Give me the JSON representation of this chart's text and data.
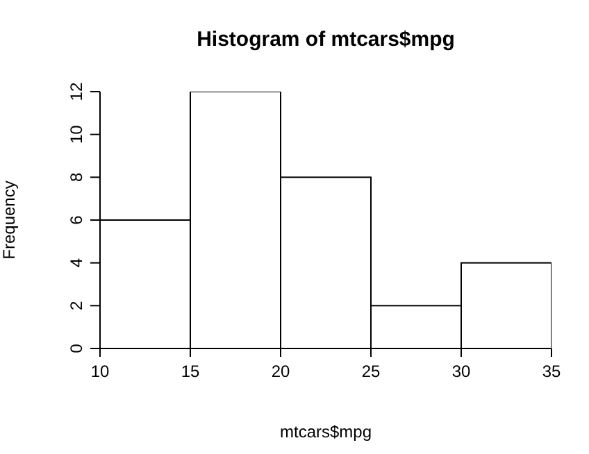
{
  "chart_data": {
    "type": "histogram",
    "title": "Histogram of mtcars$mpg",
    "xlabel": "mtcars$mpg",
    "ylabel": "Frequency",
    "bins": [
      10,
      15,
      20,
      25,
      30,
      35
    ],
    "values": [
      6,
      12,
      8,
      2,
      4
    ],
    "color": "#ffffff",
    "xlim": [
      10,
      35
    ],
    "xticks": [
      10,
      15,
      20,
      25,
      30,
      35
    ],
    "ylim": [
      0,
      12
    ],
    "yticks": [
      0,
      2,
      4,
      6,
      8,
      10,
      12
    ],
    "grid": false,
    "legend": false
  }
}
